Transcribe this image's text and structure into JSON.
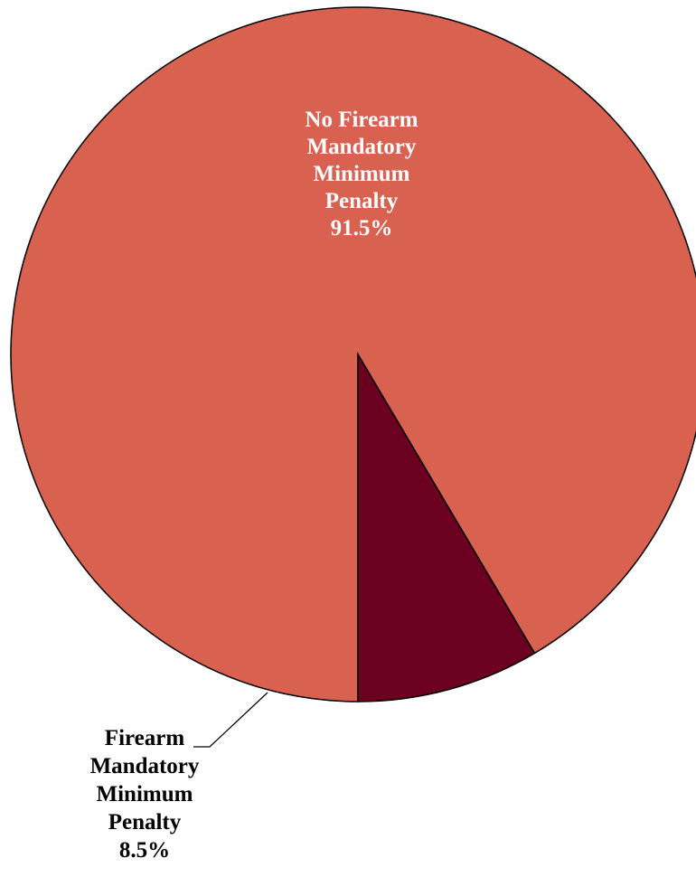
{
  "chart_data": {
    "type": "pie",
    "title": "",
    "slices": [
      {
        "label_lines": [
          "No Firearm",
          "Mandatory",
          "Minimum",
          "Penalty"
        ],
        "percent_label": "91.5%",
        "value": 91.5,
        "color": "#D96150",
        "label_color": "#FFFFFF"
      },
      {
        "label_lines": [
          "Firearm",
          "Mandatory",
          "Minimum",
          "Penalty"
        ],
        "percent_label": "8.5%",
        "value": 8.5,
        "color": "#6B0020",
        "label_color": "#000000"
      }
    ],
    "legend": "none"
  }
}
